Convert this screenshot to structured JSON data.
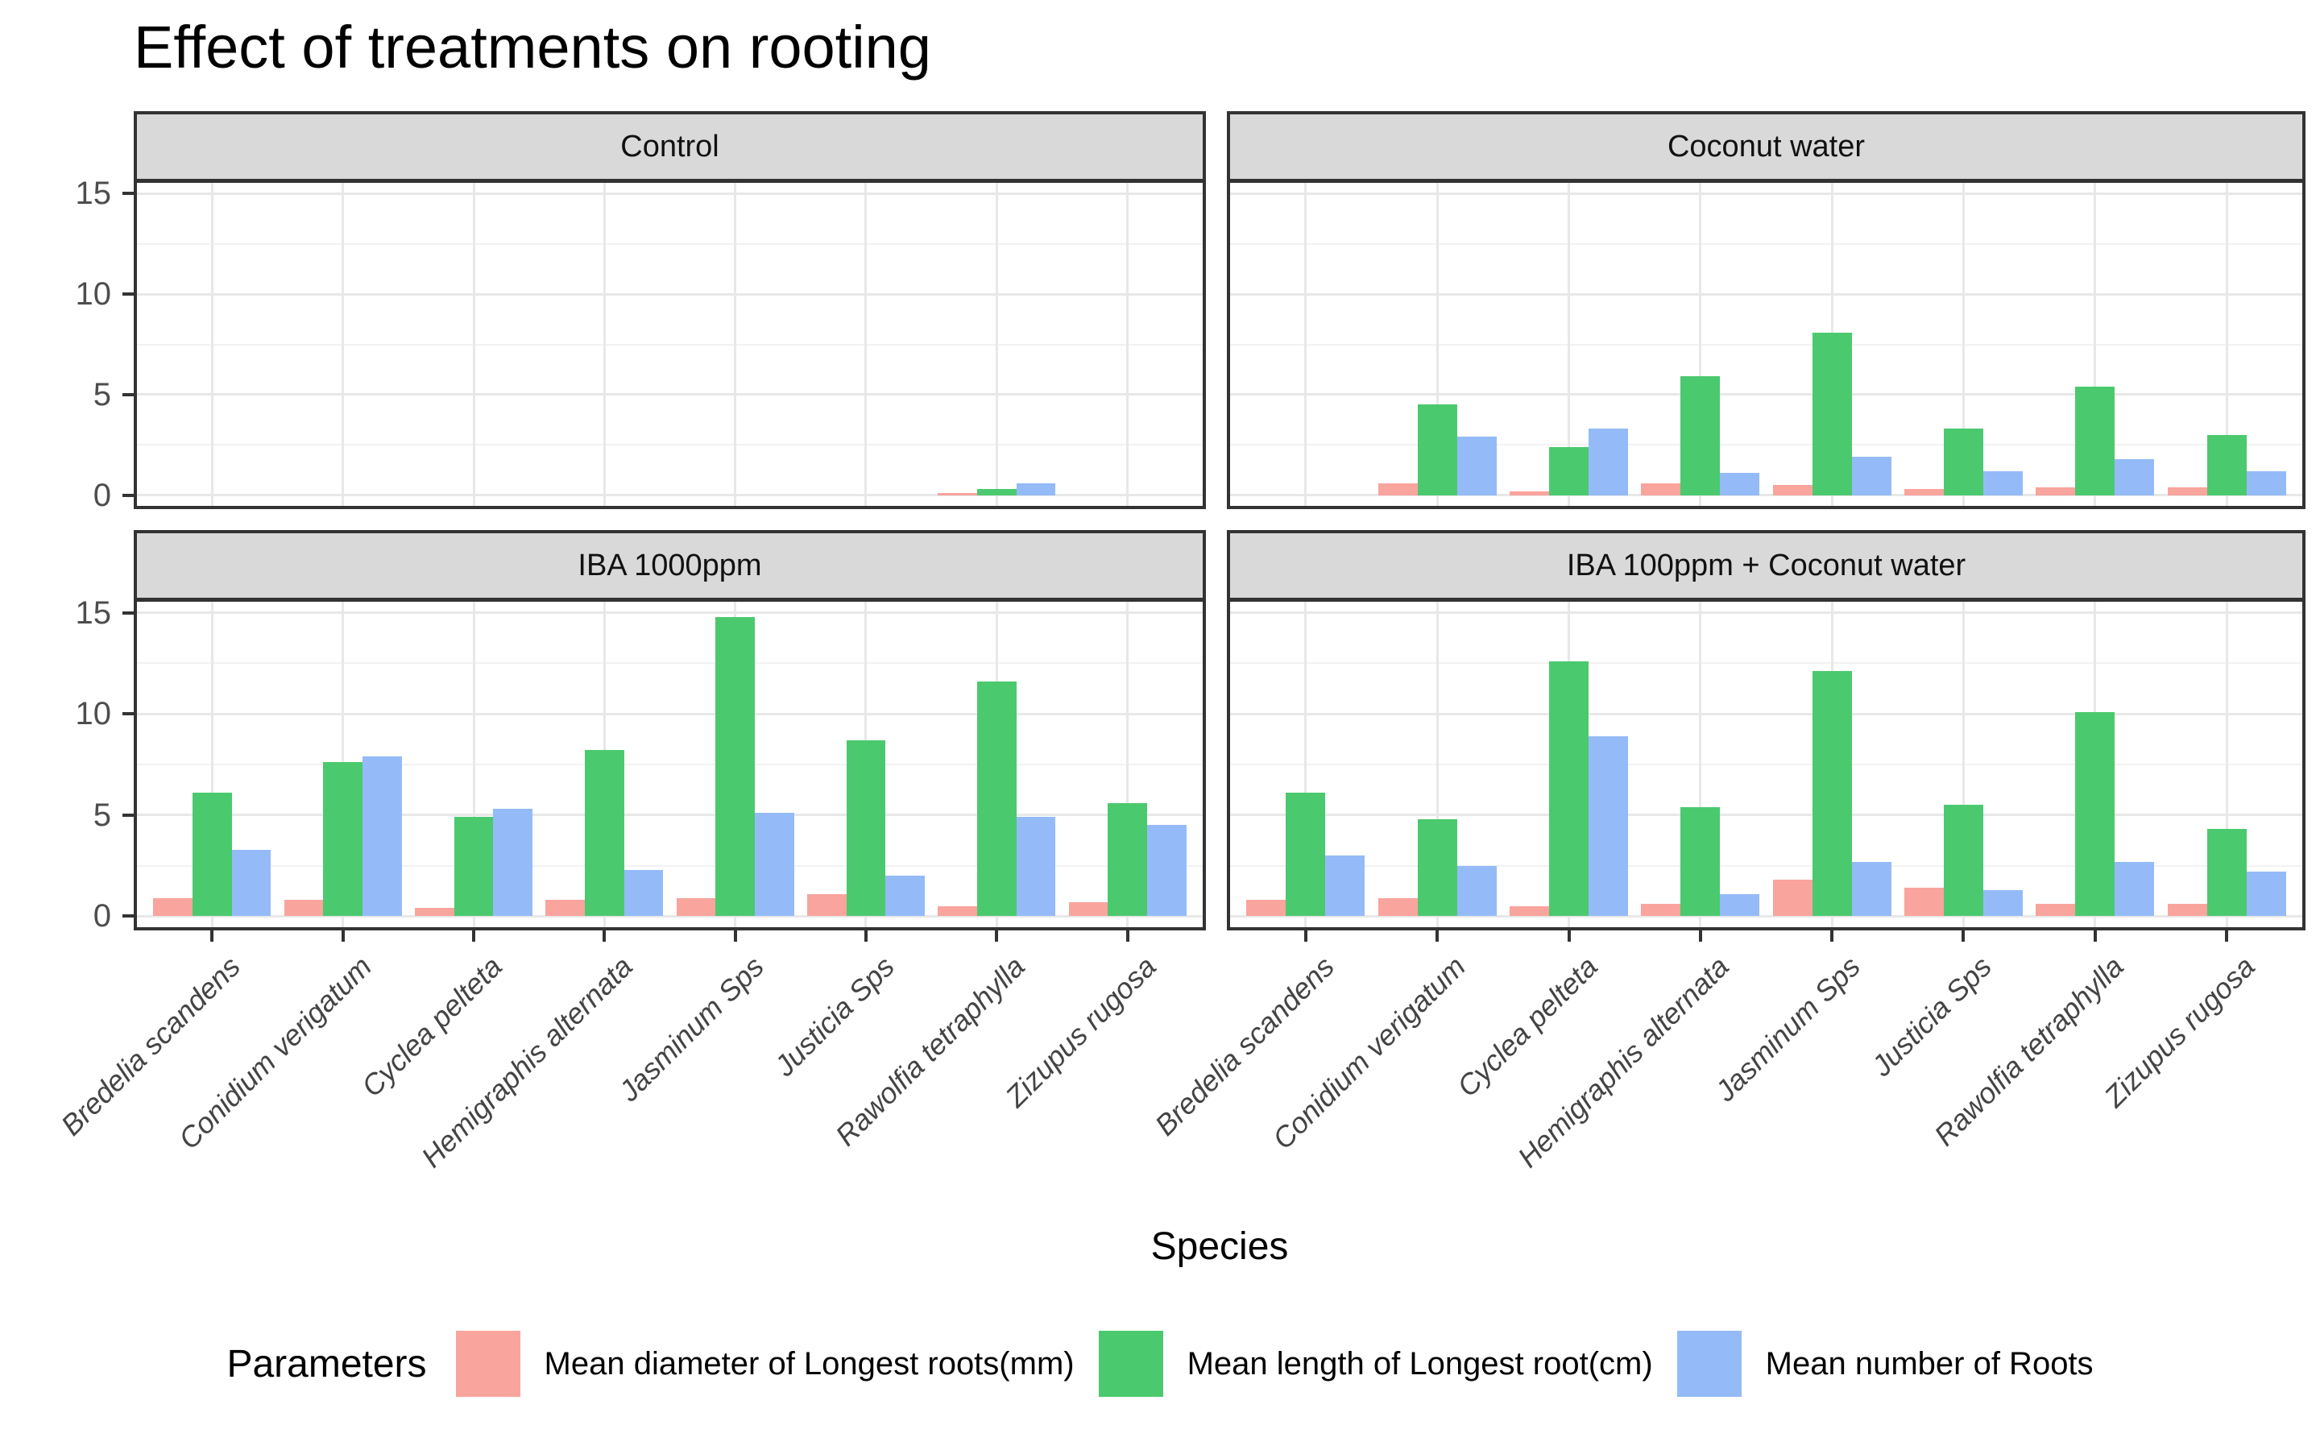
{
  "title": "Effect of treatments on rooting",
  "x_axis_title": "Species",
  "legend": {
    "title": "Parameters"
  },
  "y_axis": {
    "ticks": [
      0,
      5,
      10,
      15
    ],
    "minor_ticks": [
      2.5,
      7.5,
      12.5
    ],
    "range": [
      -0.7,
      15.7
    ]
  },
  "colors": {
    "strip_background": "#d9d9d9",
    "panel_border": "#333333",
    "grid_major": "#e8e8e8",
    "grid_minor": "#f2f2f2",
    "tick_text": "#4d4d4d"
  },
  "chart_data": {
    "type": "bar",
    "title": "Effect of treatments on rooting",
    "xlabel": "Species",
    "ylabel": "",
    "ylim": [
      -0.7,
      15.7
    ],
    "legend_position": "bottom",
    "grid": "major-and-minor-horizontal, major-vertical",
    "categories": [
      "Bredelia scandens",
      "Conidium verigatum",
      "Cyclea pelteta",
      "Hemigraphis alternata",
      "Jasminum Sps",
      "Justicia Sps",
      "Rawolfia tetraphylla",
      "Zizupus rugosa"
    ],
    "series": [
      {
        "name": "Mean diameter of Longest roots(mm)",
        "color": "#F9A49D"
      },
      {
        "name": "Mean length of Longest root(cm)",
        "color": "#4BC96E"
      },
      {
        "name": "Mean number of Roots",
        "color": "#94BBF8"
      }
    ],
    "facets": [
      {
        "label": "Control",
        "values": [
          [
            0,
            0,
            0,
            0,
            0,
            0,
            0.1,
            0
          ],
          [
            0,
            0,
            0,
            0,
            0,
            0,
            0.3,
            0
          ],
          [
            0,
            0,
            0,
            0,
            0,
            0,
            0.6,
            0
          ]
        ]
      },
      {
        "label": "Coconut water",
        "values": [
          [
            0,
            0.6,
            0.2,
            0.6,
            0.5,
            0.3,
            0.4,
            0.4
          ],
          [
            0,
            4.5,
            2.4,
            5.9,
            8.1,
            3.3,
            5.4,
            3.0
          ],
          [
            0,
            2.9,
            3.3,
            1.1,
            1.9,
            1.2,
            1.8,
            1.2
          ]
        ]
      },
      {
        "label": "IBA 1000ppm",
        "values": [
          [
            0.9,
            0.8,
            0.4,
            0.8,
            0.9,
            1.1,
            0.5,
            0.7
          ],
          [
            6.1,
            7.6,
            4.9,
            8.2,
            14.8,
            8.7,
            11.6,
            5.6
          ],
          [
            3.3,
            7.9,
            5.3,
            2.3,
            5.1,
            2.0,
            4.9,
            4.5
          ]
        ]
      },
      {
        "label": "IBA 100ppm + Coconut water",
        "values": [
          [
            0.8,
            0.9,
            0.5,
            0.6,
            1.8,
            1.4,
            0.6,
            0.6
          ],
          [
            6.1,
            4.8,
            12.6,
            5.4,
            12.1,
            5.5,
            10.1,
            4.3
          ],
          [
            3.0,
            2.5,
            8.9,
            1.1,
            2.7,
            1.3,
            2.7,
            2.2
          ]
        ]
      }
    ]
  }
}
